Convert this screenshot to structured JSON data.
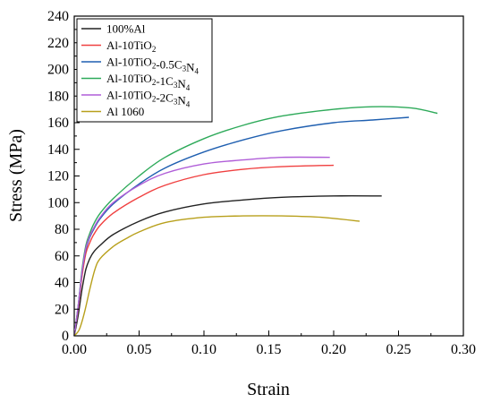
{
  "chart_data": {
    "type": "line",
    "xlabel": "Strain",
    "ylabel": "Stress (MPa)",
    "xlim": [
      0,
      0.3
    ],
    "ylim": [
      0,
      240
    ],
    "xticks": [
      0.0,
      0.05,
      0.1,
      0.15,
      0.2,
      0.25,
      0.3
    ],
    "xtick_labels": [
      "0.00",
      "0.05",
      "0.10",
      "0.15",
      "0.20",
      "0.25",
      "0.30"
    ],
    "yticks": [
      0,
      20,
      40,
      60,
      80,
      100,
      120,
      140,
      160,
      180,
      200,
      220,
      240
    ],
    "ytick_labels": [
      "0",
      "20",
      "40",
      "60",
      "80",
      "100",
      "120",
      "140",
      "160",
      "180",
      "200",
      "220",
      "240"
    ],
    "grid": false,
    "legend_position": "top-left",
    "series": [
      {
        "name": "100%Al",
        "base": "100%Al",
        "sub1": "",
        "mid": "",
        "sub2": "",
        "end": "",
        "color": "#222222",
        "x": [
          0,
          0.003,
          0.006,
          0.009,
          0.012,
          0.015,
          0.02,
          0.03,
          0.05,
          0.07,
          0.1,
          0.13,
          0.16,
          0.2,
          0.237
        ],
        "y": [
          0,
          15,
          35,
          50,
          58,
          63,
          68,
          76,
          86,
          93,
          99,
          102,
          104,
          105,
          105
        ]
      },
      {
        "name": "Al-10TiO2",
        "base": "Al-10TiO",
        "sub1": "2",
        "mid": "",
        "sub2": "",
        "end": "",
        "color": "#f04040",
        "x": [
          0,
          0.003,
          0.006,
          0.009,
          0.012,
          0.015,
          0.02,
          0.03,
          0.05,
          0.07,
          0.1,
          0.13,
          0.16,
          0.2
        ],
        "y": [
          0,
          20,
          45,
          62,
          70,
          76,
          83,
          92,
          104,
          113,
          121,
          125,
          127,
          128
        ]
      },
      {
        "name": "Al-10TiO2-0.5C3N4",
        "base": "Al-10TiO",
        "sub1": "2",
        "mid": "-0.5C",
        "sub2": "3",
        "end": "N",
        "sub3": "4",
        "color": "#1f5fb0",
        "x": [
          0,
          0.003,
          0.006,
          0.009,
          0.012,
          0.015,
          0.02,
          0.03,
          0.05,
          0.07,
          0.1,
          0.13,
          0.16,
          0.2,
          0.23,
          0.258
        ],
        "y": [
          0,
          22,
          48,
          65,
          74,
          80,
          88,
          99,
          114,
          126,
          138,
          147,
          154,
          160,
          162,
          164
        ]
      },
      {
        "name": "Al-10TiO2-1C3N4",
        "base": "Al-10TiO",
        "sub1": "2",
        "mid": "-1C",
        "sub2": "3",
        "end": "N",
        "sub3": "4",
        "color": "#2eaa5a",
        "x": [
          0,
          0.003,
          0.006,
          0.009,
          0.012,
          0.015,
          0.02,
          0.03,
          0.05,
          0.07,
          0.1,
          0.13,
          0.16,
          0.2,
          0.23,
          0.26,
          0.28
        ],
        "y": [
          0,
          22,
          50,
          68,
          77,
          84,
          92,
          103,
          120,
          134,
          148,
          158,
          165,
          170,
          172,
          171,
          167
        ]
      },
      {
        "name": "Al-10TiO2-2C3N4",
        "base": "Al-10TiO",
        "sub1": "2",
        "mid": "-2C",
        "sub2": "3",
        "end": "N",
        "sub3": "4",
        "color": "#b05ed8",
        "x": [
          0,
          0.003,
          0.006,
          0.009,
          0.012,
          0.015,
          0.02,
          0.03,
          0.05,
          0.07,
          0.1,
          0.13,
          0.16,
          0.197
        ],
        "y": [
          0,
          22,
          48,
          66,
          75,
          81,
          89,
          100,
          113,
          122,
          129,
          132,
          134,
          134
        ]
      },
      {
        "name": "Al 1060",
        "base": "Al 1060",
        "sub1": "",
        "mid": "",
        "sub2": "",
        "end": "",
        "color": "#b8a01c",
        "x": [
          0,
          0.004,
          0.008,
          0.012,
          0.016,
          0.02,
          0.03,
          0.04,
          0.05,
          0.07,
          0.1,
          0.13,
          0.16,
          0.19,
          0.22
        ],
        "y": [
          0,
          5,
          18,
          35,
          50,
          58,
          67,
          73,
          78,
          85,
          89,
          90,
          90,
          89,
          86
        ]
      }
    ]
  }
}
